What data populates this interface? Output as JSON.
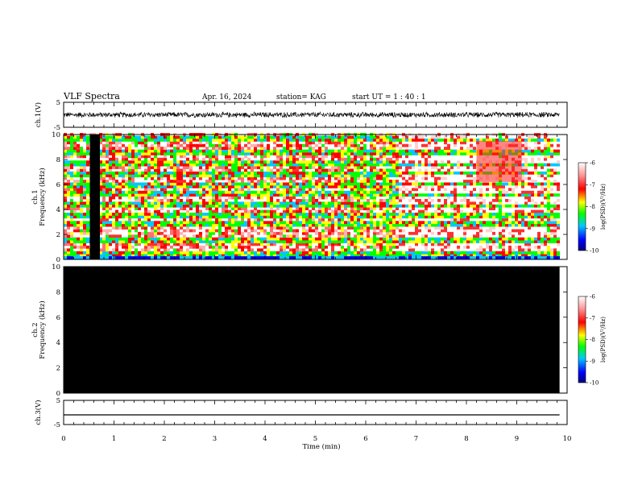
{
  "header": {
    "title": "VLF Spectra",
    "date": "Apr. 16, 2024",
    "station": "station= KAG",
    "start_ut": "start  UT =   1 : 40 : 1"
  },
  "chart_data": [
    {
      "type": "line",
      "panel": "ch1-waveform",
      "ylabel": "ch.1(V)",
      "ylim": [
        -5,
        5
      ],
      "yticks": [
        "5",
        "-5"
      ],
      "xlim": [
        0,
        10
      ],
      "signal_end_min": 9.85,
      "description_values": {
        "mean_level_V": 0.0,
        "amplitude_V": 1.2
      }
    },
    {
      "type": "heatmap",
      "panel": "ch1-spectrogram",
      "ylabel": "ch.1\nFrequency  (kHz)",
      "ylim": [
        0,
        10
      ],
      "yticks": [
        "0",
        "2",
        "4",
        "6",
        "8",
        "10"
      ],
      "xlim": [
        0,
        10
      ],
      "signal_end_min": 9.85,
      "gap": [
        0.52,
        0.72
      ],
      "segments": [
        {
          "x": [
            0,
            2.55
          ],
          "style": "dense-bands"
        },
        {
          "x": [
            2.55,
            6.65
          ],
          "style": "broadband-mixed"
        },
        {
          "x": [
            6.65,
            9.85
          ],
          "style": "smooth-bands"
        }
      ],
      "bands_khz": [
        0.3,
        1.5,
        2.7,
        3.4,
        4.2,
        5.1,
        5.9,
        6.8,
        7.5,
        8.4,
        9.5
      ],
      "colorbar": {
        "label": "log(PSD)(V²/Hz)",
        "range": [
          -10,
          -6
        ],
        "ticks": [
          "-6",
          "-7",
          "-8",
          "-9",
          "-10"
        ]
      }
    },
    {
      "type": "heatmap",
      "panel": "ch2-spectrogram",
      "ylabel": "ch.2\nFrequency  (kHz)",
      "ylim": [
        0,
        10
      ],
      "yticks": [
        "0",
        "2",
        "4",
        "6",
        "8",
        "10"
      ],
      "xlim": [
        0,
        10
      ],
      "signal_end_min": 9.85,
      "fill": "no-signal",
      "colorbar": {
        "label": "log(PSD)(V²/Hz)",
        "range": [
          -10,
          -6
        ],
        "ticks": [
          "-6",
          "-7",
          "-8",
          "-9",
          "-10"
        ]
      }
    },
    {
      "type": "line",
      "panel": "ch3-waveform",
      "ylabel": "ch.3(V)",
      "ylim": [
        -5,
        5
      ],
      "yticks": [
        "5",
        "-5"
      ],
      "xlim": [
        0,
        10
      ],
      "signal_end_min": 9.85,
      "description_values": {
        "flat_level_V": -1.0
      }
    }
  ],
  "xaxis": {
    "label": "Time  (min)",
    "ticks": [
      "0",
      "1",
      "2",
      "3",
      "4",
      "5",
      "6",
      "7",
      "8",
      "9",
      "10"
    ]
  },
  "colors": {
    "background": "#ffffff",
    "ink": "#000000",
    "colormap": [
      "#000080",
      "#0000ff",
      "#00c8ff",
      "#00ff00",
      "#ffff00",
      "#ff0000",
      "#ffc0c0",
      "#ffffff"
    ]
  }
}
